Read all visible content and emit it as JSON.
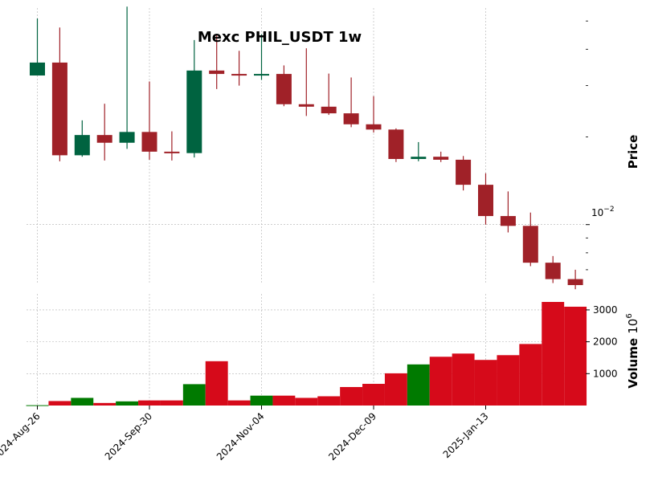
{
  "chart_data": {
    "type": "candlestick",
    "title": "Mexc PHIL_USDT 1w",
    "ylabel_price": "Price",
    "ylabel_volume": "Volume",
    "volume_multiplier_label": "10",
    "volume_multiplier_exp": "6",
    "price_scale": "log",
    "price_tick_label": {
      "base": "10",
      "exp": "−2",
      "value": 0.01
    },
    "price_ylim": [
      0.00632,
      0.0554
    ],
    "volume_ylim": [
      0,
      3250
    ],
    "volume_ticks": [
      "1000",
      "2000",
      "3000"
    ],
    "volume_tick_values": [
      1000,
      2000,
      3000
    ],
    "x_tick_labels": [
      "2024-Aug-26",
      "2024-Sep-30",
      "2024-Nov-04",
      "2024-Dec-09",
      "2025-Jan-13"
    ],
    "x_tick_indices": [
      0,
      5,
      10,
      15,
      20
    ],
    "grid": true,
    "colors": {
      "up_candle": "#006340",
      "down_candle": "#a02128",
      "up_volume": "#007a00",
      "down_volume": "#d60a1a",
      "grid": "#b0b0b0"
    },
    "candles": [
      {
        "open": 0.0325,
        "high": 0.051,
        "low": 0.0325,
        "close": 0.036,
        "volume": 10
      },
      {
        "open": 0.036,
        "high": 0.0475,
        "low": 0.0165,
        "close": 0.0173,
        "volume": 140
      },
      {
        "open": 0.0173,
        "high": 0.0228,
        "low": 0.0171,
        "close": 0.0203,
        "volume": 240
      },
      {
        "open": 0.0203,
        "high": 0.026,
        "low": 0.0166,
        "close": 0.0191,
        "volume": 80
      },
      {
        "open": 0.0191,
        "high": 0.056,
        "low": 0.0182,
        "close": 0.0208,
        "volume": 130
      },
      {
        "open": 0.0208,
        "high": 0.031,
        "low": 0.0167,
        "close": 0.0178,
        "volume": 160
      },
      {
        "open": 0.0178,
        "high": 0.0209,
        "low": 0.0166,
        "close": 0.0176,
        "volume": 160
      },
      {
        "open": 0.0176,
        "high": 0.043,
        "low": 0.017,
        "close": 0.0338,
        "volume": 670
      },
      {
        "open": 0.0338,
        "high": 0.045,
        "low": 0.0292,
        "close": 0.0329,
        "volume": 1390
      },
      {
        "open": 0.0329,
        "high": 0.0395,
        "low": 0.03,
        "close": 0.0326,
        "volume": 160
      },
      {
        "open": 0.0326,
        "high": 0.045,
        "low": 0.0314,
        "close": 0.0329,
        "volume": 310
      },
      {
        "open": 0.0329,
        "high": 0.0352,
        "low": 0.0255,
        "close": 0.0259,
        "volume": 310
      },
      {
        "open": 0.0259,
        "high": 0.0403,
        "low": 0.0236,
        "close": 0.0254,
        "volume": 240
      },
      {
        "open": 0.0254,
        "high": 0.033,
        "low": 0.0238,
        "close": 0.0241,
        "volume": 290
      },
      {
        "open": 0.0241,
        "high": 0.032,
        "low": 0.0216,
        "close": 0.0221,
        "volume": 580
      },
      {
        "open": 0.0221,
        "high": 0.0276,
        "low": 0.0207,
        "close": 0.0212,
        "volume": 680
      },
      {
        "open": 0.0212,
        "high": 0.0214,
        "low": 0.0164,
        "close": 0.0168,
        "volume": 1010
      },
      {
        "open": 0.0168,
        "high": 0.0192,
        "low": 0.0165,
        "close": 0.0171,
        "volume": 1290
      },
      {
        "open": 0.0171,
        "high": 0.0178,
        "low": 0.0164,
        "close": 0.0167,
        "volume": 1530
      },
      {
        "open": 0.0167,
        "high": 0.0172,
        "low": 0.0131,
        "close": 0.0137,
        "volume": 1630
      },
      {
        "open": 0.0137,
        "high": 0.015,
        "low": 0.01,
        "close": 0.0107,
        "volume": 1430
      },
      {
        "open": 0.0107,
        "high": 0.013,
        "low": 0.0094,
        "close": 0.0099,
        "volume": 1580
      },
      {
        "open": 0.0099,
        "high": 0.011,
        "low": 0.0072,
        "close": 0.0074,
        "volume": 1930
      },
      {
        "open": 0.0074,
        "high": 0.0078,
        "low": 0.0063,
        "close": 0.0065,
        "volume": 3250
      },
      {
        "open": 0.0065,
        "high": 0.007,
        "low": 0.006,
        "close": 0.0062,
        "volume": 3100
      }
    ]
  }
}
